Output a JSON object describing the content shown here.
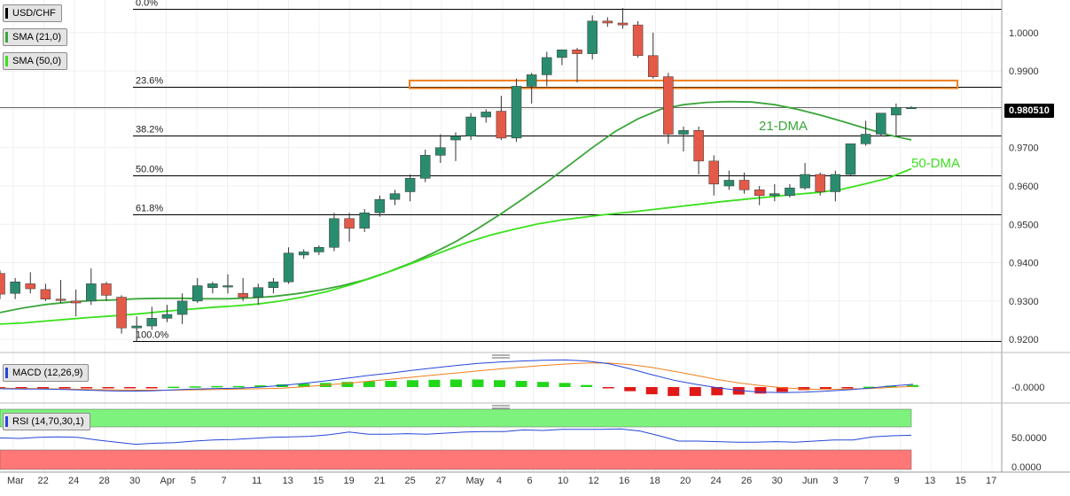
{
  "symbol_label": "USD/CHF",
  "indicator_labels": {
    "sma21": "SMA (21,0)",
    "sma50": "SMA (50,0)",
    "macd": "MACD (12,26,9)",
    "rsi": "RSI (14,70,30,1)"
  },
  "colors": {
    "up": "#2a8c6e",
    "down": "#e35a48",
    "sma21": "#3aa63a",
    "sma50": "#3be01e",
    "fib": "#000000",
    "zone": "#f07f1e",
    "macd_line": "#2647d8",
    "signal_line": "#f07f1e",
    "hist_pos": "#22d61a",
    "hist_neg": "#e01818",
    "rsi_line": "#2647d8",
    "rsi_overbought": "#7df27d",
    "rsi_oversold": "#ff7777"
  },
  "price_tag": "0.980510",
  "chart_data": {
    "type": "candlestick",
    "price_axis": {
      "ticks": [
        "1.0000",
        "0.9900",
        "0.9800",
        "0.9700",
        "0.9600",
        "0.9500",
        "0.9400",
        "0.9300",
        "0.9200"
      ],
      "range": [
        0.9175,
        1.0085
      ]
    },
    "x_axis_labels": [
      "Mar",
      "22",
      "24",
      "28",
      "30",
      "Apr",
      "5",
      "7",
      "11",
      "13",
      "15",
      "19",
      "21",
      "25",
      "27",
      "May",
      "4",
      "6",
      "10",
      "12",
      "16",
      "18",
      "20",
      "24",
      "26",
      "30",
      "Jun",
      "3",
      "7",
      "9",
      "13",
      "15",
      "17"
    ],
    "fibonacci": [
      {
        "label": "0.0%",
        "price": 1.0063
      },
      {
        "label": "23.6%",
        "price": 0.9858
      },
      {
        "label": "38.2%",
        "price": 0.9731
      },
      {
        "label": "50.0%",
        "price": 0.9628
      },
      {
        "label": "61.8%",
        "price": 0.9525
      },
      {
        "label": "100.0%",
        "price": 0.9195
      }
    ],
    "resistance_zone": {
      "low": 0.9855,
      "high": 0.9875
    },
    "current_price": 0.98051,
    "annotations": [
      "21-DMA",
      "50-DMA"
    ],
    "candles": [
      {
        "o": 0.9372,
        "h": 0.938,
        "l": 0.9305,
        "c": 0.9318
      },
      {
        "o": 0.932,
        "h": 0.936,
        "l": 0.9305,
        "c": 0.935
      },
      {
        "o": 0.9345,
        "h": 0.9375,
        "l": 0.932,
        "c": 0.9332
      },
      {
        "o": 0.933,
        "h": 0.9345,
        "l": 0.93,
        "c": 0.9305
      },
      {
        "o": 0.9305,
        "h": 0.9355,
        "l": 0.9295,
        "c": 0.9302
      },
      {
        "o": 0.93,
        "h": 0.933,
        "l": 0.926,
        "c": 0.9295
      },
      {
        "o": 0.93,
        "h": 0.9385,
        "l": 0.929,
        "c": 0.9345
      },
      {
        "o": 0.9345,
        "h": 0.935,
        "l": 0.93,
        "c": 0.9315
      },
      {
        "o": 0.931,
        "h": 0.9315,
        "l": 0.9215,
        "c": 0.923
      },
      {
        "o": 0.923,
        "h": 0.926,
        "l": 0.9195,
        "c": 0.9235
      },
      {
        "o": 0.9235,
        "h": 0.9285,
        "l": 0.9225,
        "c": 0.9255
      },
      {
        "o": 0.9255,
        "h": 0.929,
        "l": 0.9245,
        "c": 0.9265
      },
      {
        "o": 0.9265,
        "h": 0.932,
        "l": 0.924,
        "c": 0.93
      },
      {
        "o": 0.93,
        "h": 0.936,
        "l": 0.9295,
        "c": 0.934
      },
      {
        "o": 0.9335,
        "h": 0.935,
        "l": 0.932,
        "c": 0.9345
      },
      {
        "o": 0.934,
        "h": 0.937,
        "l": 0.932,
        "c": 0.934
      },
      {
        "o": 0.932,
        "h": 0.936,
        "l": 0.93,
        "c": 0.931
      },
      {
        "o": 0.931,
        "h": 0.9345,
        "l": 0.929,
        "c": 0.9335
      },
      {
        "o": 0.9335,
        "h": 0.936,
        "l": 0.932,
        "c": 0.935
      },
      {
        "o": 0.935,
        "h": 0.944,
        "l": 0.9345,
        "c": 0.9425
      },
      {
        "o": 0.942,
        "h": 0.9435,
        "l": 0.941,
        "c": 0.9428
      },
      {
        "o": 0.9428,
        "h": 0.9445,
        "l": 0.942,
        "c": 0.944
      },
      {
        "o": 0.944,
        "h": 0.953,
        "l": 0.943,
        "c": 0.9515
      },
      {
        "o": 0.9515,
        "h": 0.953,
        "l": 0.9455,
        "c": 0.949
      },
      {
        "o": 0.949,
        "h": 0.954,
        "l": 0.948,
        "c": 0.953
      },
      {
        "o": 0.953,
        "h": 0.9575,
        "l": 0.952,
        "c": 0.9565
      },
      {
        "o": 0.9565,
        "h": 0.959,
        "l": 0.955,
        "c": 0.958
      },
      {
        "o": 0.9585,
        "h": 0.963,
        "l": 0.956,
        "c": 0.962
      },
      {
        "o": 0.962,
        "h": 0.9695,
        "l": 0.961,
        "c": 0.968
      },
      {
        "o": 0.968,
        "h": 0.9735,
        "l": 0.966,
        "c": 0.97
      },
      {
        "o": 0.972,
        "h": 0.974,
        "l": 0.9665,
        "c": 0.973
      },
      {
        "o": 0.973,
        "h": 0.979,
        "l": 0.972,
        "c": 0.978
      },
      {
        "o": 0.978,
        "h": 0.98,
        "l": 0.9765,
        "c": 0.9793
      },
      {
        "o": 0.9795,
        "h": 0.9835,
        "l": 0.972,
        "c": 0.9725
      },
      {
        "o": 0.9725,
        "h": 0.988,
        "l": 0.9715,
        "c": 0.986
      },
      {
        "o": 0.986,
        "h": 0.9895,
        "l": 0.9815,
        "c": 0.989
      },
      {
        "o": 0.989,
        "h": 0.995,
        "l": 0.986,
        "c": 0.9935
      },
      {
        "o": 0.9935,
        "h": 0.9955,
        "l": 0.9915,
        "c": 0.9955
      },
      {
        "o": 0.9955,
        "h": 0.996,
        "l": 0.987,
        "c": 0.9945
      },
      {
        "o": 0.9945,
        "h": 1.0045,
        "l": 0.993,
        "c": 1.003
      },
      {
        "o": 1.003,
        "h": 1.004,
        "l": 1.0015,
        "c": 1.0025
      },
      {
        "o": 1.0025,
        "h": 1.0064,
        "l": 1.001,
        "c": 1.002
      },
      {
        "o": 1.002,
        "h": 1.003,
        "l": 0.9935,
        "c": 0.994
      },
      {
        "o": 0.994,
        "h": 1.0,
        "l": 0.988,
        "c": 0.9885
      },
      {
        "o": 0.9885,
        "h": 0.9895,
        "l": 0.971,
        "c": 0.9735
      },
      {
        "o": 0.9735,
        "h": 0.9755,
        "l": 0.969,
        "c": 0.9745
      },
      {
        "o": 0.9745,
        "h": 0.9755,
        "l": 0.963,
        "c": 0.9665
      },
      {
        "o": 0.9665,
        "h": 0.968,
        "l": 0.9575,
        "c": 0.9605
      },
      {
        "o": 0.96,
        "h": 0.964,
        "l": 0.959,
        "c": 0.9615
      },
      {
        "o": 0.9615,
        "h": 0.9635,
        "l": 0.958,
        "c": 0.959
      },
      {
        "o": 0.959,
        "h": 0.96,
        "l": 0.955,
        "c": 0.9575
      },
      {
        "o": 0.9575,
        "h": 0.9605,
        "l": 0.956,
        "c": 0.958
      },
      {
        "o": 0.9575,
        "h": 0.9605,
        "l": 0.957,
        "c": 0.9595
      },
      {
        "o": 0.9595,
        "h": 0.966,
        "l": 0.959,
        "c": 0.963
      },
      {
        "o": 0.963,
        "h": 0.9635,
        "l": 0.9575,
        "c": 0.9585
      },
      {
        "o": 0.9585,
        "h": 0.964,
        "l": 0.956,
        "c": 0.963
      },
      {
        "o": 0.963,
        "h": 0.971,
        "l": 0.9625,
        "c": 0.971
      },
      {
        "o": 0.971,
        "h": 0.977,
        "l": 0.9705,
        "c": 0.9735
      },
      {
        "o": 0.9735,
        "h": 0.979,
        "l": 0.973,
        "c": 0.979
      },
      {
        "o": 0.9785,
        "h": 0.9815,
        "l": 0.973,
        "c": 0.9805
      },
      {
        "o": 0.9805,
        "h": 0.9808,
        "l": 0.9802,
        "c": 0.9805
      }
    ],
    "sma21": [
      0.927,
      0.9282,
      0.9291,
      0.9297,
      0.9301,
      0.9303,
      0.9306,
      0.9307,
      0.9307,
      0.9306,
      0.9306,
      0.9308,
      0.9312,
      0.9319,
      0.9328,
      0.934,
      0.9355,
      0.9375,
      0.9398,
      0.9425,
      0.9455,
      0.949,
      0.9528,
      0.9568,
      0.961,
      0.9655,
      0.97,
      0.9742,
      0.9775,
      0.98,
      0.9812,
      0.9818,
      0.982,
      0.9819,
      0.9812,
      0.98,
      0.9785,
      0.9768,
      0.975,
      0.9733,
      0.972
    ],
    "sma50": [
      0.924,
      0.9243,
      0.9248,
      0.9253,
      0.9258,
      0.9262,
      0.9267,
      0.9273,
      0.9278,
      0.9283,
      0.9287,
      0.9292,
      0.93,
      0.9311,
      0.9325,
      0.9342,
      0.9362,
      0.9384,
      0.9407,
      0.943,
      0.9453,
      0.9472,
      0.9487,
      0.9501,
      0.9511,
      0.9519,
      0.9526,
      0.9532,
      0.9539,
      0.9546,
      0.9553,
      0.956,
      0.9566,
      0.9572,
      0.9578,
      0.9583,
      0.9591,
      0.9605,
      0.962,
      0.9645
    ],
    "macd": {
      "axis_tick": "-0.0000",
      "macd": [
        -0.0005,
        -0.0006,
        -0.0006,
        -0.0007,
        -0.0009,
        -0.0011,
        -0.0012,
        -0.0011,
        -0.0008,
        -0.0006,
        -0.0004,
        -0.0003,
        0.0,
        0.0005,
        0.0011,
        0.0018,
        0.0026,
        0.0034,
        0.0041,
        0.0049,
        0.0056,
        0.0063,
        0.0069,
        0.0073,
        0.0076,
        0.0078,
        0.0079,
        0.0076,
        0.0068,
        0.0053,
        0.0036,
        0.002,
        0.0008,
        -0.0002,
        -0.001,
        -0.0015,
        -0.0016,
        -0.0015,
        -0.0012,
        -0.0008,
        -0.0003,
        0.0003,
        0.0008
      ],
      "signal": [
        -0.0003,
        -0.0004,
        -0.0005,
        -0.0006,
        -0.0007,
        -0.0008,
        -0.0009,
        -0.0009,
        -0.0009,
        -0.0008,
        -0.0007,
        -0.0006,
        -0.0005,
        -0.0003,
        0.0001,
        0.0006,
        0.0011,
        0.0017,
        0.0023,
        0.0029,
        0.0035,
        0.0041,
        0.0047,
        0.0053,
        0.0058,
        0.0063,
        0.0067,
        0.007,
        0.007,
        0.0065,
        0.0057,
        0.0046,
        0.0034,
        0.0022,
        0.0012,
        0.0004,
        -0.0002,
        -0.0006,
        -0.0007,
        -0.0006,
        -0.0004,
        -0.0001,
        0.0002
      ],
      "histogram": [
        -0.0002,
        -0.0002,
        -0.0001,
        -0.0001,
        -0.0002,
        -0.0003,
        -0.0003,
        -0.0002,
        0.0001,
        0.0002,
        0.0003,
        0.0003,
        0.0005,
        0.0008,
        0.001,
        0.0012,
        0.0015,
        0.0017,
        0.0018,
        0.002,
        0.0021,
        0.0022,
        0.0022,
        0.002,
        0.0018,
        0.0015,
        0.0012,
        0.0006,
        -0.0002,
        -0.0012,
        -0.0021,
        -0.0026,
        -0.0026,
        -0.0024,
        -0.0022,
        -0.0019,
        -0.0014,
        -0.0009,
        -0.0005,
        -0.0002,
        0.0001,
        0.0004,
        0.0006
      ]
    },
    "rsi": {
      "ticks": [
        "50.0000",
        "0.0000"
      ],
      "overbought": 70,
      "oversold": 30,
      "values": [
        56,
        55,
        57,
        58,
        57,
        52,
        48,
        44,
        46,
        47,
        50,
        52,
        53,
        55,
        57,
        58,
        59,
        62,
        67,
        63,
        63,
        64,
        63,
        65,
        67,
        68,
        68,
        71,
        70,
        72,
        72,
        72,
        73,
        69,
        60,
        50,
        50,
        49,
        48,
        48,
        49,
        48,
        50,
        52,
        52,
        58,
        60,
        61
      ]
    }
  }
}
